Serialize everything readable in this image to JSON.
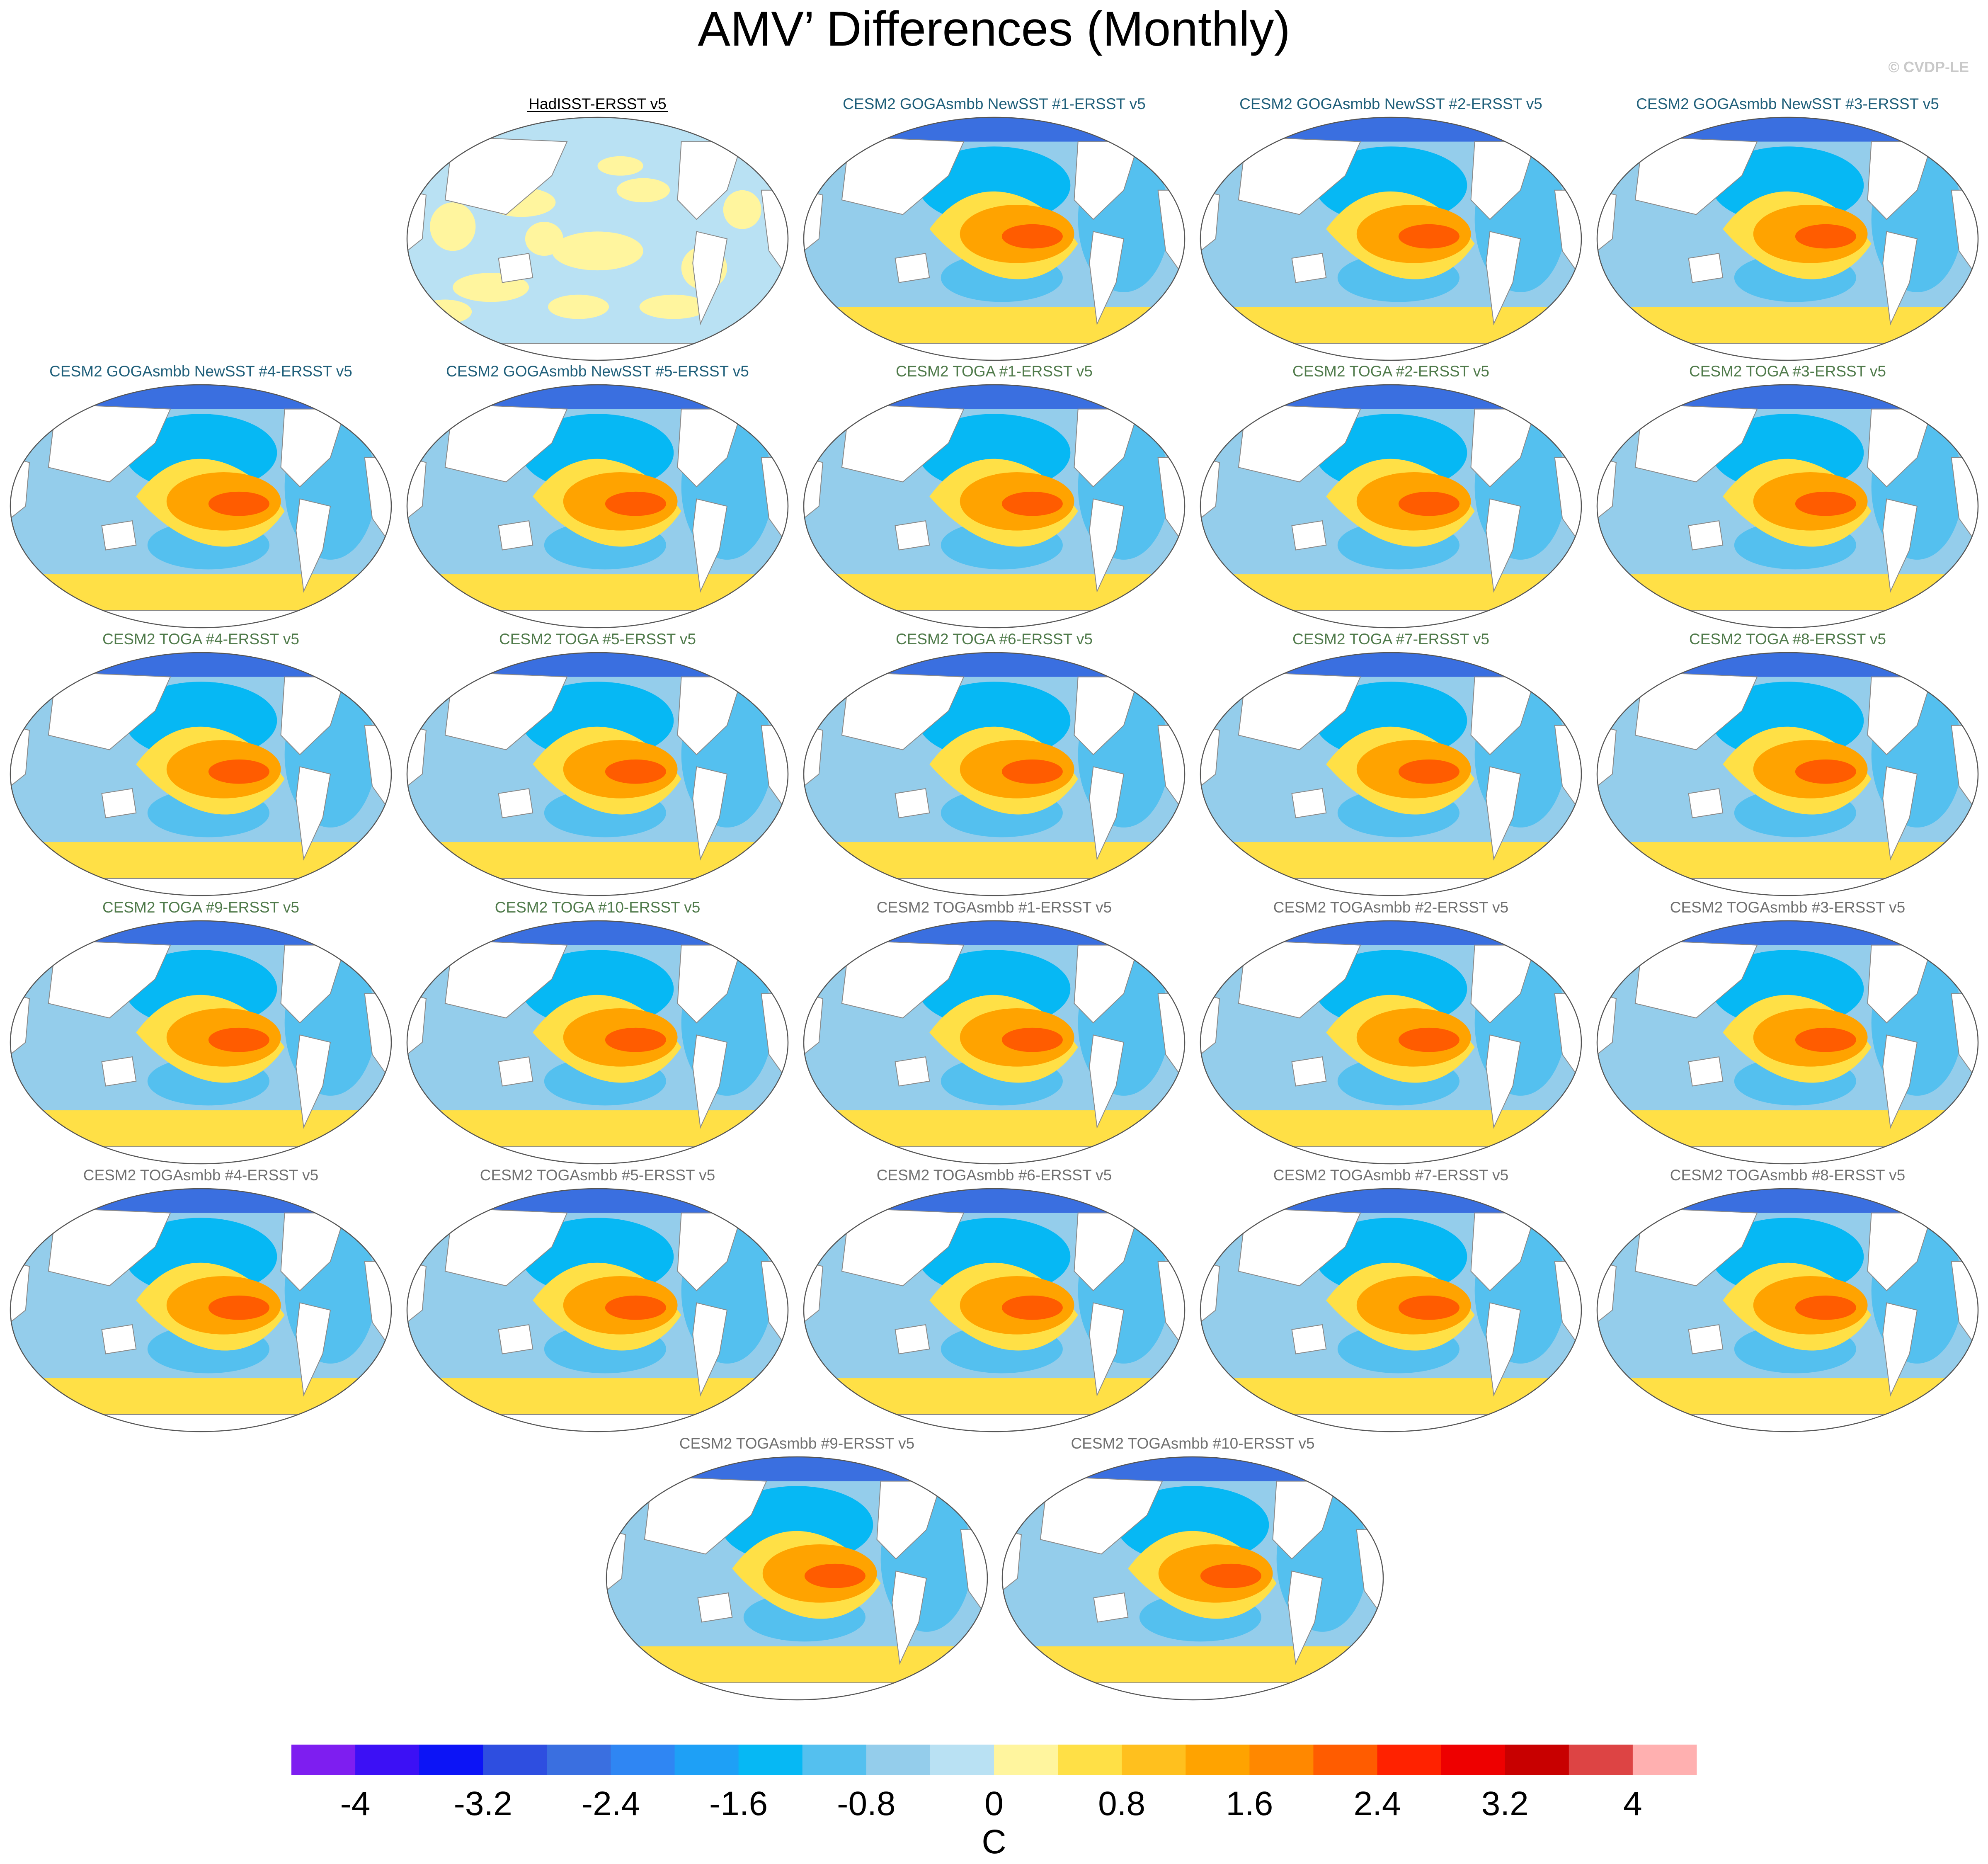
{
  "chart_data": {
    "type": "map-panels",
    "title": "AMV’ Differences (Monthly)",
    "credit": "© CVDP-LE",
    "units": "C",
    "colorbar": {
      "levels": [
        -4.4,
        -4,
        -3.6,
        -3.2,
        -2.8,
        -2.4,
        -2,
        -1.6,
        -1.2,
        -0.8,
        -0.4,
        0,
        0.4,
        0.8,
        1.2,
        1.6,
        2,
        2.4,
        2.8,
        3.2,
        3.6,
        4,
        4.4
      ],
      "tick_values": [
        -4,
        -3.2,
        -2.4,
        -1.6,
        -0.8,
        0,
        0.8,
        1.6,
        2.4,
        3.2,
        4
      ],
      "tick_labels": [
        "-4",
        "-3.2",
        "-2.4",
        "-1.6",
        "-0.8",
        "0",
        "0.8",
        "1.6",
        "2.4",
        "3.2",
        "4"
      ],
      "colors": [
        "#7e1ef0",
        "#3c10f5",
        "#0c14f6",
        "#2e4ee0",
        "#3a6fe0",
        "#2f86f3",
        "#1ea0f6",
        "#06b8f4",
        "#54c0ef",
        "#94cdeb",
        "#b9e1f3",
        "#fff59e",
        "#ffe046",
        "#ffc01e",
        "#ffa300",
        "#ff8800",
        "#ff5c00",
        "#ff2200",
        "#ee0000",
        "#c80000",
        "#dd4444",
        "#ffb0b0"
      ]
    },
    "panels": [
      {
        "label": "HadISST-ERSST v5",
        "group": "obs",
        "pattern": "obs"
      },
      {
        "label": "CESM2 GOGAsmbb NewSST #1-ERSST v5",
        "group": "goga",
        "pattern": "model"
      },
      {
        "label": "CESM2 GOGAsmbb NewSST #2-ERSST v5",
        "group": "goga",
        "pattern": "model"
      },
      {
        "label": "CESM2 GOGAsmbb NewSST #3-ERSST v5",
        "group": "goga",
        "pattern": "model"
      },
      {
        "label": "CESM2 GOGAsmbb NewSST #4-ERSST v5",
        "group": "goga",
        "pattern": "model"
      },
      {
        "label": "CESM2 GOGAsmbb NewSST #5-ERSST v5",
        "group": "goga",
        "pattern": "model"
      },
      {
        "label": "CESM2 TOGA #1-ERSST v5",
        "group": "toga",
        "pattern": "model"
      },
      {
        "label": "CESM2 TOGA #2-ERSST v5",
        "group": "toga",
        "pattern": "model"
      },
      {
        "label": "CESM2 TOGA #3-ERSST v5",
        "group": "toga",
        "pattern": "model"
      },
      {
        "label": "CESM2 TOGA #4-ERSST v5",
        "group": "toga",
        "pattern": "model"
      },
      {
        "label": "CESM2 TOGA #5-ERSST v5",
        "group": "toga",
        "pattern": "model"
      },
      {
        "label": "CESM2 TOGA #6-ERSST v5",
        "group": "toga",
        "pattern": "model"
      },
      {
        "label": "CESM2 TOGA #7-ERSST v5",
        "group": "toga",
        "pattern": "model"
      },
      {
        "label": "CESM2 TOGA #8-ERSST v5",
        "group": "toga",
        "pattern": "model"
      },
      {
        "label": "CESM2 TOGA #9-ERSST v5",
        "group": "toga",
        "pattern": "model"
      },
      {
        "label": "CESM2 TOGA #10-ERSST v5",
        "group": "toga",
        "pattern": "model"
      },
      {
        "label": "CESM2 TOGAsmbb #1-ERSST v5",
        "group": "togasmbb",
        "pattern": "model"
      },
      {
        "label": "CESM2 TOGAsmbb #2-ERSST v5",
        "group": "togasmbb",
        "pattern": "model"
      },
      {
        "label": "CESM2 TOGAsmbb #3-ERSST v5",
        "group": "togasmbb",
        "pattern": "model"
      },
      {
        "label": "CESM2 TOGAsmbb #4-ERSST v5",
        "group": "togasmbb",
        "pattern": "model"
      },
      {
        "label": "CESM2 TOGAsmbb #5-ERSST v5",
        "group": "togasmbb",
        "pattern": "model"
      },
      {
        "label": "CESM2 TOGAsmbb #6-ERSST v5",
        "group": "togasmbb",
        "pattern": "model"
      },
      {
        "label": "CESM2 TOGAsmbb #7-ERSST v5",
        "group": "togasmbb",
        "pattern": "model"
      },
      {
        "label": "CESM2 TOGAsmbb #8-ERSST v5",
        "group": "togasmbb",
        "pattern": "model"
      },
      {
        "label": "CESM2 TOGAsmbb #9-ERSST v5",
        "group": "togasmbb",
        "pattern": "model"
      },
      {
        "label": "CESM2 TOGAsmbb #10-ERSST v5",
        "group": "togasmbb",
        "pattern": "model"
      }
    ],
    "group_colors": {
      "obs": "#000000",
      "goga": "#1f5f7a",
      "toga": "#4f7a4a",
      "togasmbb": "#707070"
    },
    "model_pattern": [
      {
        "feature": "pacific-tongue-core",
        "value": 2.0
      },
      {
        "feature": "pacific-tongue",
        "value": 1.2
      },
      {
        "feature": "pacific-horseshoe",
        "value": 0.6
      },
      {
        "feature": "north-pacific",
        "value": -1.4
      },
      {
        "feature": "south-pacific",
        "value": -1.0
      },
      {
        "feature": "indian-ocean",
        "value": -0.5
      },
      {
        "feature": "atlantic",
        "value": -1.2
      },
      {
        "feature": "southern-ocean",
        "value": 0.5
      },
      {
        "feature": "arctic",
        "value": -2.8
      }
    ],
    "obs_pattern": [
      {
        "feature": "global-background",
        "value": -0.3
      },
      {
        "feature": "scattered-patches",
        "value": 0.2
      }
    ]
  }
}
